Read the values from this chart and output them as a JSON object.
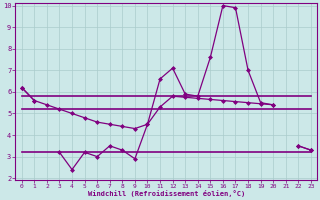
{
  "x": [
    0,
    1,
    2,
    3,
    4,
    5,
    6,
    7,
    8,
    9,
    10,
    11,
    12,
    13,
    14,
    15,
    16,
    17,
    18,
    19,
    20,
    21,
    22,
    23
  ],
  "line_zigzag": [
    6.2,
    5.6,
    null,
    3.2,
    2.4,
    3.2,
    3.0,
    3.5,
    3.3,
    2.9,
    4.5,
    6.6,
    7.1,
    5.9,
    5.8,
    7.6,
    10.0,
    9.9,
    7.0,
    5.5,
    5.4,
    null,
    3.5,
    3.3
  ],
  "line_upper_flat": [
    5.8,
    5.8,
    5.8,
    5.8,
    5.8,
    5.8,
    5.8,
    5.8,
    5.8,
    5.8,
    5.8,
    5.8,
    5.8,
    5.8,
    5.8,
    5.8,
    5.8,
    5.8,
    5.8,
    5.8,
    5.8,
    5.8,
    5.8,
    5.8
  ],
  "line_mid_flat": [
    5.2,
    5.2,
    5.2,
    5.2,
    5.2,
    5.2,
    5.2,
    5.2,
    5.2,
    5.2,
    5.2,
    5.2,
    5.2,
    5.2,
    5.2,
    5.2,
    5.2,
    5.2,
    5.2,
    5.2,
    5.2,
    5.2,
    5.2,
    5.2
  ],
  "line_lower_flat": [
    3.2,
    3.2,
    3.2,
    3.2,
    3.2,
    3.2,
    3.2,
    3.2,
    3.2,
    3.2,
    3.2,
    3.2,
    3.2,
    3.2,
    3.2,
    3.2,
    3.2,
    3.2,
    3.2,
    3.2,
    3.2,
    3.2,
    3.2,
    3.2
  ],
  "line_diag": [
    6.2,
    5.6,
    5.4,
    5.2,
    5.0,
    4.8,
    4.6,
    4.5,
    4.4,
    4.3,
    4.5,
    5.3,
    5.8,
    5.75,
    5.7,
    5.65,
    5.6,
    5.55,
    5.5,
    5.45,
    5.4,
    null,
    3.5,
    3.3
  ],
  "color": "#800080",
  "bg_color": "#cce8e8",
  "grid_color": "#aacccc",
  "xlabel": "Windchill (Refroidissement éolien,°C)",
  "ylim": [
    2,
    10
  ],
  "xlim": [
    -0.5,
    23.5
  ],
  "yticks": [
    2,
    3,
    4,
    5,
    6,
    7,
    8,
    9,
    10
  ],
  "xticks": [
    0,
    1,
    2,
    3,
    4,
    5,
    6,
    7,
    8,
    9,
    10,
    11,
    12,
    13,
    14,
    15,
    16,
    17,
    18,
    19,
    20,
    21,
    22,
    23
  ]
}
